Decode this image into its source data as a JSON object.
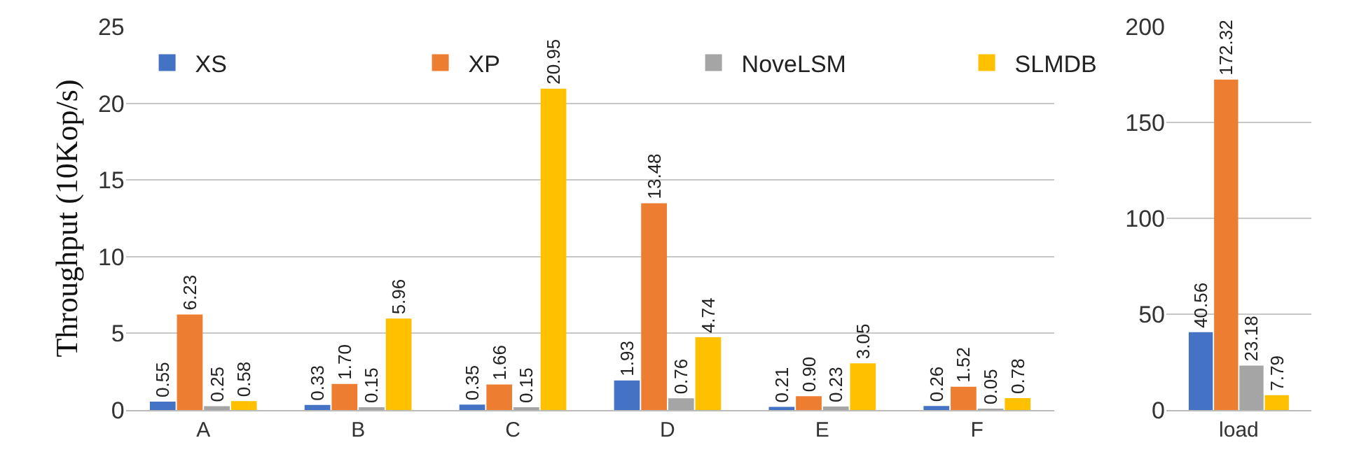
{
  "chart_data": [
    {
      "type": "bar",
      "ylabel": "Throughput (10Kop/s)",
      "categories": [
        "A",
        "B",
        "C",
        "D",
        "E",
        "F"
      ],
      "series": [
        {
          "name": "XS",
          "color": "#4472c4",
          "values": [
            0.55,
            0.33,
            0.35,
            1.93,
            0.21,
            0.26
          ]
        },
        {
          "name": "XP",
          "color": "#ed7d31",
          "values": [
            6.23,
            1.7,
            1.66,
            13.48,
            0.9,
            1.52
          ],
          "value_labels": [
            "6.23",
            "1.70",
            "1.66",
            "13.48",
            "0.90",
            "1.52"
          ]
        },
        {
          "name": "NoveLSM",
          "color": "#a5a5a5",
          "values": [
            0.25,
            0.15,
            0.15,
            0.76,
            0.23,
            0.05
          ]
        },
        {
          "name": "SLMDB",
          "color": "#ffc000",
          "values": [
            0.58,
            5.96,
            20.95,
            4.74,
            3.05,
            0.78
          ]
        }
      ],
      "ylim": [
        0,
        25
      ],
      "yticks": [
        0,
        5,
        10,
        15,
        20,
        25
      ],
      "grid": "y",
      "legend": "top left",
      "data_labels": true
    },
    {
      "type": "bar",
      "categories": [
        "load"
      ],
      "series": [
        {
          "color": "#4472c4",
          "values": [
            40.56
          ]
        },
        {
          "color": "#ed7d31",
          "values": [
            172.32
          ]
        },
        {
          "color": "#a5a5a5",
          "values": [
            23.18
          ]
        },
        {
          "color": "#ffc000",
          "values": [
            7.79
          ]
        }
      ],
      "ylim": [
        0,
        200
      ],
      "yticks": [
        0,
        50,
        100,
        150,
        200
      ],
      "grid": "y",
      "data_labels": true
    }
  ]
}
